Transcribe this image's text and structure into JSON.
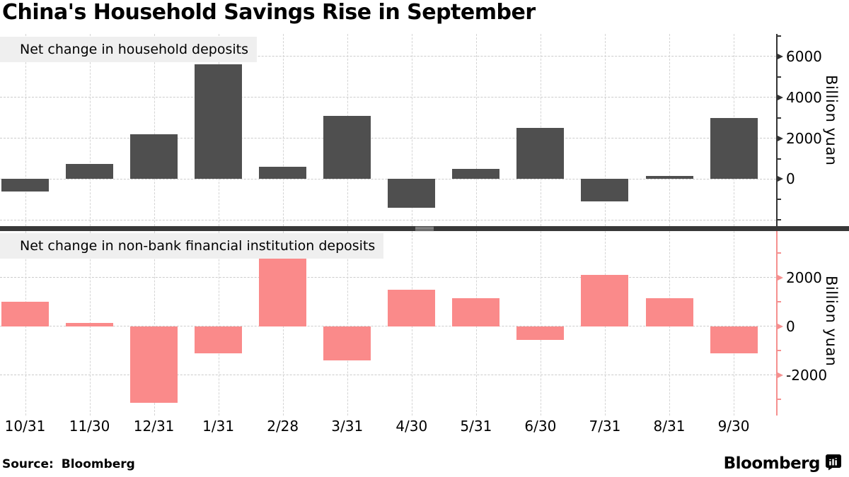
{
  "header": {
    "title": "China's Household Savings Rise in September"
  },
  "footer": {
    "source": "Source: Bloomberg",
    "brand": "Bloomberg",
    "brand_icon": "bloomberg-terminal-icon"
  },
  "colors": {
    "bar_dark": "#4f4f4f",
    "bar_pink": "#fa8a8a",
    "axis_dark": "#333333",
    "axis_pink": "#f5908f",
    "legend_bg": "#efefef",
    "gridline": "#cccccc",
    "divider": "#383838"
  },
  "chart_data": [
    {
      "type": "bar",
      "panel": "top",
      "legend": "Net change in household deposits",
      "ylabel": "Billion yuan",
      "bar_color": "#4f4f4f",
      "axis_color": "#333333",
      "categories": [
        "10/31",
        "11/30",
        "12/31",
        "1/31",
        "2/28",
        "3/31",
        "4/30",
        "5/31",
        "6/30",
        "7/31",
        "8/31",
        "9/30"
      ],
      "values": [
        -600,
        750,
        2200,
        5600,
        600,
        3100,
        -1400,
        500,
        2500,
        -1100,
        150,
        3000
      ],
      "yticks_major": [
        0,
        2000,
        4000,
        6000
      ],
      "yticks_minor": [
        7000,
        5000,
        3000,
        1000,
        -1000,
        -2000
      ],
      "gridlines": [
        6000,
        4000,
        2000,
        0,
        -2000
      ],
      "ylim": [
        -2300,
        7100
      ],
      "grid": true,
      "legend_position": "top-left",
      "axis_side": "right"
    },
    {
      "type": "bar",
      "panel": "bottom",
      "legend": "Net change in non-bank financial institution deposits",
      "ylabel": "Billion yuan",
      "bar_color": "#fa8a8a",
      "axis_color": "#f5908f",
      "categories": [
        "10/31",
        "11/30",
        "12/31",
        "1/31",
        "2/28",
        "3/31",
        "4/30",
        "5/31",
        "6/30",
        "7/31",
        "8/31",
        "9/30"
      ],
      "values": [
        1000,
        150,
        -3150,
        -1100,
        2800,
        -1400,
        1500,
        1150,
        -550,
        2100,
        1150,
        -1100
      ],
      "yticks_major": [
        2000,
        0,
        -2000
      ],
      "yticks_minor": [
        3000,
        1000,
        -1000,
        -3000
      ],
      "gridlines": [
        2000,
        0,
        -2000
      ],
      "ylim": [
        -3663,
        3906
      ],
      "grid": true,
      "legend_position": "top-left",
      "axis_side": "right"
    }
  ]
}
